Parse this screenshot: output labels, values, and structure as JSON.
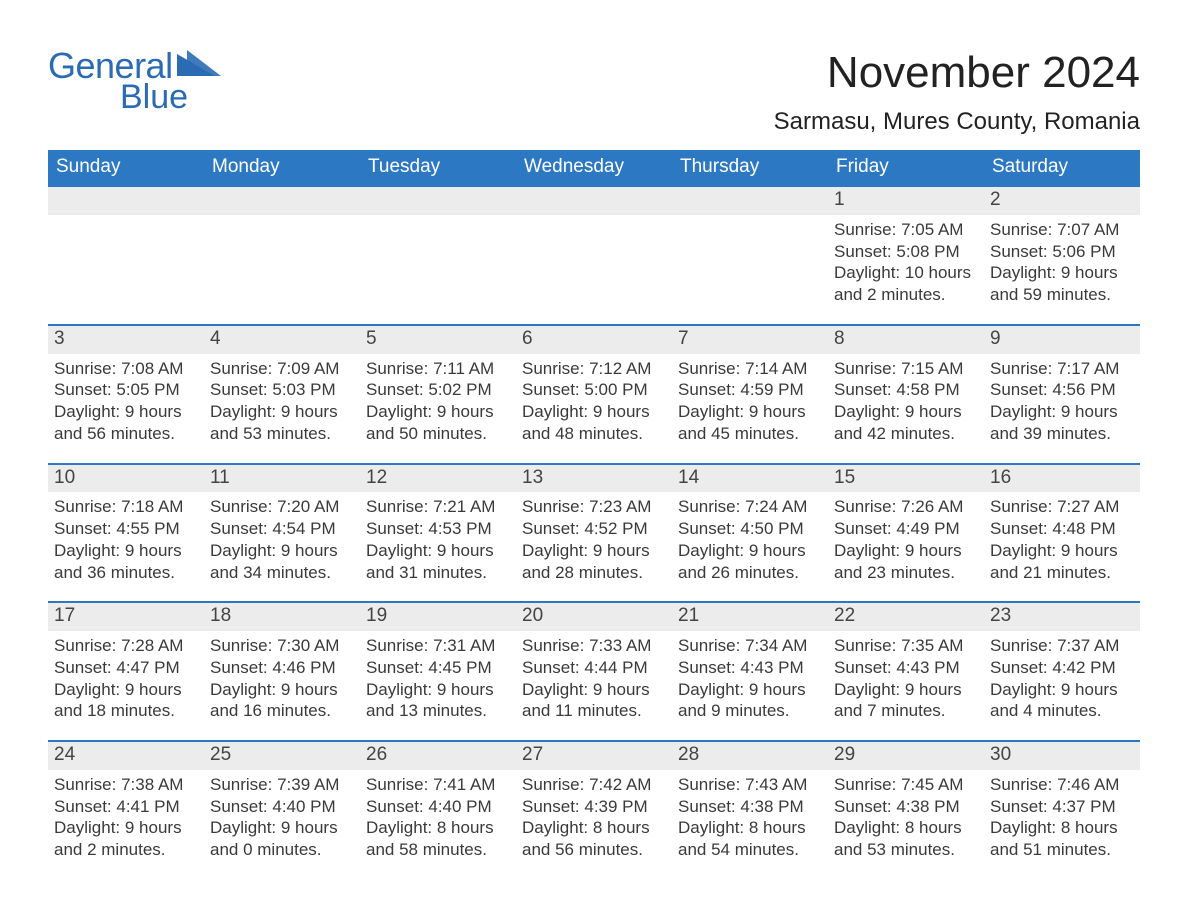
{
  "colors": {
    "brand_blue": "#2d78c3",
    "logo_blue": "#2a6bb3",
    "day_number_bg": "#ececec",
    "text": "#3a3a3a",
    "background": "#ffffff"
  },
  "fonts": {
    "family": "Arial, Helvetica, sans-serif",
    "month_title_size": 44,
    "location_size": 24,
    "weekday_size": 19,
    "day_number_size": 19,
    "body_size": 17
  },
  "logo": {
    "text_general": "General",
    "text_blue": "Blue"
  },
  "title": {
    "month": "November 2024",
    "location": "Sarmasu, Mures County, Romania"
  },
  "weekdays": [
    "Sunday",
    "Monday",
    "Tuesday",
    "Wednesday",
    "Thursday",
    "Friday",
    "Saturday"
  ],
  "calendar": {
    "type": "table",
    "columns": 7,
    "rows": 5,
    "weeks": [
      [
        null,
        null,
        null,
        null,
        null,
        {
          "day": "1",
          "sunrise": "Sunrise: 7:05 AM",
          "sunset": "Sunset: 5:08 PM",
          "day1": "Daylight: 10 hours",
          "day2": "and 2 minutes."
        },
        {
          "day": "2",
          "sunrise": "Sunrise: 7:07 AM",
          "sunset": "Sunset: 5:06 PM",
          "day1": "Daylight: 9 hours",
          "day2": "and 59 minutes."
        }
      ],
      [
        {
          "day": "3",
          "sunrise": "Sunrise: 7:08 AM",
          "sunset": "Sunset: 5:05 PM",
          "day1": "Daylight: 9 hours",
          "day2": "and 56 minutes."
        },
        {
          "day": "4",
          "sunrise": "Sunrise: 7:09 AM",
          "sunset": "Sunset: 5:03 PM",
          "day1": "Daylight: 9 hours",
          "day2": "and 53 minutes."
        },
        {
          "day": "5",
          "sunrise": "Sunrise: 7:11 AM",
          "sunset": "Sunset: 5:02 PM",
          "day1": "Daylight: 9 hours",
          "day2": "and 50 minutes."
        },
        {
          "day": "6",
          "sunrise": "Sunrise: 7:12 AM",
          "sunset": "Sunset: 5:00 PM",
          "day1": "Daylight: 9 hours",
          "day2": "and 48 minutes."
        },
        {
          "day": "7",
          "sunrise": "Sunrise: 7:14 AM",
          "sunset": "Sunset: 4:59 PM",
          "day1": "Daylight: 9 hours",
          "day2": "and 45 minutes."
        },
        {
          "day": "8",
          "sunrise": "Sunrise: 7:15 AM",
          "sunset": "Sunset: 4:58 PM",
          "day1": "Daylight: 9 hours",
          "day2": "and 42 minutes."
        },
        {
          "day": "9",
          "sunrise": "Sunrise: 7:17 AM",
          "sunset": "Sunset: 4:56 PM",
          "day1": "Daylight: 9 hours",
          "day2": "and 39 minutes."
        }
      ],
      [
        {
          "day": "10",
          "sunrise": "Sunrise: 7:18 AM",
          "sunset": "Sunset: 4:55 PM",
          "day1": "Daylight: 9 hours",
          "day2": "and 36 minutes."
        },
        {
          "day": "11",
          "sunrise": "Sunrise: 7:20 AM",
          "sunset": "Sunset: 4:54 PM",
          "day1": "Daylight: 9 hours",
          "day2": "and 34 minutes."
        },
        {
          "day": "12",
          "sunrise": "Sunrise: 7:21 AM",
          "sunset": "Sunset: 4:53 PM",
          "day1": "Daylight: 9 hours",
          "day2": "and 31 minutes."
        },
        {
          "day": "13",
          "sunrise": "Sunrise: 7:23 AM",
          "sunset": "Sunset: 4:52 PM",
          "day1": "Daylight: 9 hours",
          "day2": "and 28 minutes."
        },
        {
          "day": "14",
          "sunrise": "Sunrise: 7:24 AM",
          "sunset": "Sunset: 4:50 PM",
          "day1": "Daylight: 9 hours",
          "day2": "and 26 minutes."
        },
        {
          "day": "15",
          "sunrise": "Sunrise: 7:26 AM",
          "sunset": "Sunset: 4:49 PM",
          "day1": "Daylight: 9 hours",
          "day2": "and 23 minutes."
        },
        {
          "day": "16",
          "sunrise": "Sunrise: 7:27 AM",
          "sunset": "Sunset: 4:48 PM",
          "day1": "Daylight: 9 hours",
          "day2": "and 21 minutes."
        }
      ],
      [
        {
          "day": "17",
          "sunrise": "Sunrise: 7:28 AM",
          "sunset": "Sunset: 4:47 PM",
          "day1": "Daylight: 9 hours",
          "day2": "and 18 minutes."
        },
        {
          "day": "18",
          "sunrise": "Sunrise: 7:30 AM",
          "sunset": "Sunset: 4:46 PM",
          "day1": "Daylight: 9 hours",
          "day2": "and 16 minutes."
        },
        {
          "day": "19",
          "sunrise": "Sunrise: 7:31 AM",
          "sunset": "Sunset: 4:45 PM",
          "day1": "Daylight: 9 hours",
          "day2": "and 13 minutes."
        },
        {
          "day": "20",
          "sunrise": "Sunrise: 7:33 AM",
          "sunset": "Sunset: 4:44 PM",
          "day1": "Daylight: 9 hours",
          "day2": "and 11 minutes."
        },
        {
          "day": "21",
          "sunrise": "Sunrise: 7:34 AM",
          "sunset": "Sunset: 4:43 PM",
          "day1": "Daylight: 9 hours",
          "day2": "and 9 minutes."
        },
        {
          "day": "22",
          "sunrise": "Sunrise: 7:35 AM",
          "sunset": "Sunset: 4:43 PM",
          "day1": "Daylight: 9 hours",
          "day2": "and 7 minutes."
        },
        {
          "day": "23",
          "sunrise": "Sunrise: 7:37 AM",
          "sunset": "Sunset: 4:42 PM",
          "day1": "Daylight: 9 hours",
          "day2": "and 4 minutes."
        }
      ],
      [
        {
          "day": "24",
          "sunrise": "Sunrise: 7:38 AM",
          "sunset": "Sunset: 4:41 PM",
          "day1": "Daylight: 9 hours",
          "day2": "and 2 minutes."
        },
        {
          "day": "25",
          "sunrise": "Sunrise: 7:39 AM",
          "sunset": "Sunset: 4:40 PM",
          "day1": "Daylight: 9 hours",
          "day2": "and 0 minutes."
        },
        {
          "day": "26",
          "sunrise": "Sunrise: 7:41 AM",
          "sunset": "Sunset: 4:40 PM",
          "day1": "Daylight: 8 hours",
          "day2": "and 58 minutes."
        },
        {
          "day": "27",
          "sunrise": "Sunrise: 7:42 AM",
          "sunset": "Sunset: 4:39 PM",
          "day1": "Daylight: 8 hours",
          "day2": "and 56 minutes."
        },
        {
          "day": "28",
          "sunrise": "Sunrise: 7:43 AM",
          "sunset": "Sunset: 4:38 PM",
          "day1": "Daylight: 8 hours",
          "day2": "and 54 minutes."
        },
        {
          "day": "29",
          "sunrise": "Sunrise: 7:45 AM",
          "sunset": "Sunset: 4:38 PM",
          "day1": "Daylight: 8 hours",
          "day2": "and 53 minutes."
        },
        {
          "day": "30",
          "sunrise": "Sunrise: 7:46 AM",
          "sunset": "Sunset: 4:37 PM",
          "day1": "Daylight: 8 hours",
          "day2": "and 51 minutes."
        }
      ]
    ]
  }
}
